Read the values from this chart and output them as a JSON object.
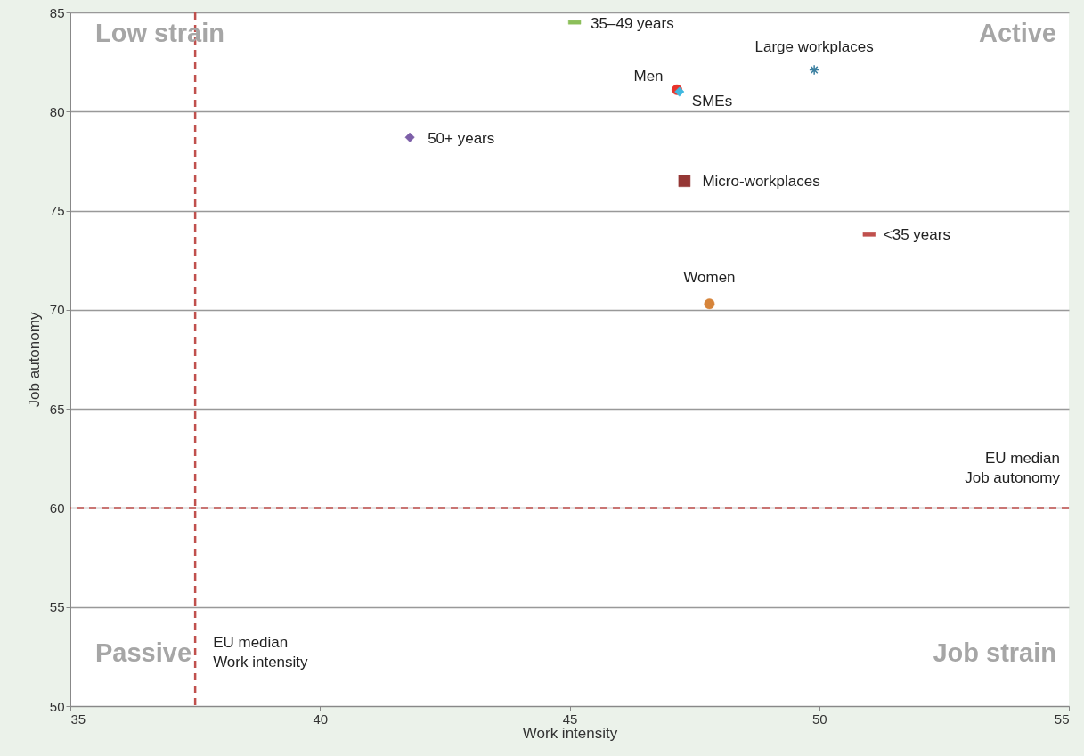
{
  "chart_data": {
    "type": "scatter",
    "xlabel": "Work intensity",
    "ylabel": "Job autonomy",
    "xlim": [
      35,
      55
    ],
    "xticks": [
      35,
      40,
      45,
      50,
      55
    ],
    "ylim": [
      50,
      85
    ],
    "yticks": [
      50,
      55,
      60,
      65,
      70,
      75,
      80,
      85
    ],
    "grid": "y",
    "series": [
      {
        "name": "35–49 years",
        "color": "#8cbf5a",
        "x": [
          45.1
        ],
        "values": [
          84.5
        ]
      },
      {
        "name": "Large workplaces",
        "color": "#3a7fa0",
        "marker": "cross",
        "x": [
          49.9
        ],
        "values": [
          82.1
        ]
      },
      {
        "name": "Men",
        "color": "#e8332a",
        "marker": "circle",
        "x": [
          47.15
        ],
        "values": [
          81.1
        ]
      },
      {
        "name": "SMEs",
        "color": "#40b8e0",
        "marker": "diamond",
        "x": [
          47.2
        ],
        "values": [
          81.0
        ]
      },
      {
        "name": "50+ years",
        "color": "#7d5fa8",
        "marker": "diamond",
        "x": [
          41.8
        ],
        "values": [
          78.7
        ]
      },
      {
        "name": "Micro-workplaces",
        "color": "#953735",
        "marker": "square",
        "x": [
          47.3
        ],
        "values": [
          76.5
        ]
      },
      {
        "name": "<35 years",
        "color": "#c0504d",
        "x": [
          51.0
        ],
        "values": [
          73.8
        ]
      },
      {
        "name": "Women",
        "color": "#d6843a",
        "marker": "circle",
        "x": [
          47.8
        ],
        "values": [
          70.3
        ]
      }
    ],
    "ref_lines": [
      {
        "axis": "x",
        "value": 37.5,
        "label": "EU median\nWork intensity",
        "color": "#c0504d",
        "line_style": "dashed"
      },
      {
        "axis": "y",
        "value": 60,
        "label": "EU median\nJob autonomy",
        "color": "#c0504d",
        "line_style": "dashed"
      }
    ],
    "annotations": [
      "Low strain",
      "Active",
      "Passive",
      "Job strain"
    ]
  }
}
